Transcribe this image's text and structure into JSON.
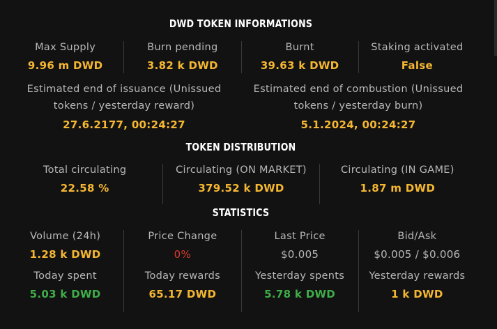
{
  "token_info": {
    "title": "DWD TOKEN INFORMATIONS",
    "max_supply": {
      "label": "Max Supply",
      "value": "9.96 m DWD"
    },
    "burn_pending": {
      "label": "Burn pending",
      "value": "3.82 k DWD"
    },
    "burnt": {
      "label": "Burnt",
      "value": "39.63 k DWD"
    },
    "staking": {
      "label": "Staking activated",
      "value": "False"
    },
    "end_issuance": {
      "label_line1": "Estimated end of issuance (Unissued",
      "label_line2": "tokens / yesterday reward)",
      "value": "27.6.2177, 00:24:27"
    },
    "end_combustion": {
      "label_line1": "Estimated end of combustion (Unissued",
      "label_line2": "tokens / yesterday burn)",
      "value": "5.1.2024, 00:24:27"
    }
  },
  "distribution": {
    "title": "TOKEN DISTRIBUTION",
    "total": {
      "label": "Total circulating",
      "value": "22.58 %"
    },
    "market": {
      "label": "Circulating (ON MARKET)",
      "value": "379.52 k DWD"
    },
    "game": {
      "label": "Circulating (IN GAME)",
      "value": "1.87 m DWD"
    }
  },
  "statistics": {
    "title": "STATISTICS",
    "volume": {
      "label": "Volume (24h)",
      "value": "1.28 k DWD"
    },
    "price_change": {
      "label": "Price Change",
      "value": "0%"
    },
    "last_price": {
      "label": "Last Price",
      "value": "$0.005"
    },
    "bid_ask": {
      "label": "Bid/Ask",
      "value": "$0.005 / $0.006"
    },
    "today_spent": {
      "label": "Today spent",
      "value": "5.03 k DWD"
    },
    "today_rewards": {
      "label": "Today rewards",
      "value": "65.17 DWD"
    },
    "yesterday_spents": {
      "label": "Yesterday spents",
      "value": "5.78 k DWD"
    },
    "yesterday_rewards": {
      "label": "Yesterday rewards",
      "value": "1 k DWD"
    }
  },
  "colors": {
    "background": "#121212",
    "accent_yellow": "#f5b731",
    "positive_green": "#3fae49",
    "negative_red": "#d83a2f",
    "label_grey": "#b8b8b8"
  }
}
